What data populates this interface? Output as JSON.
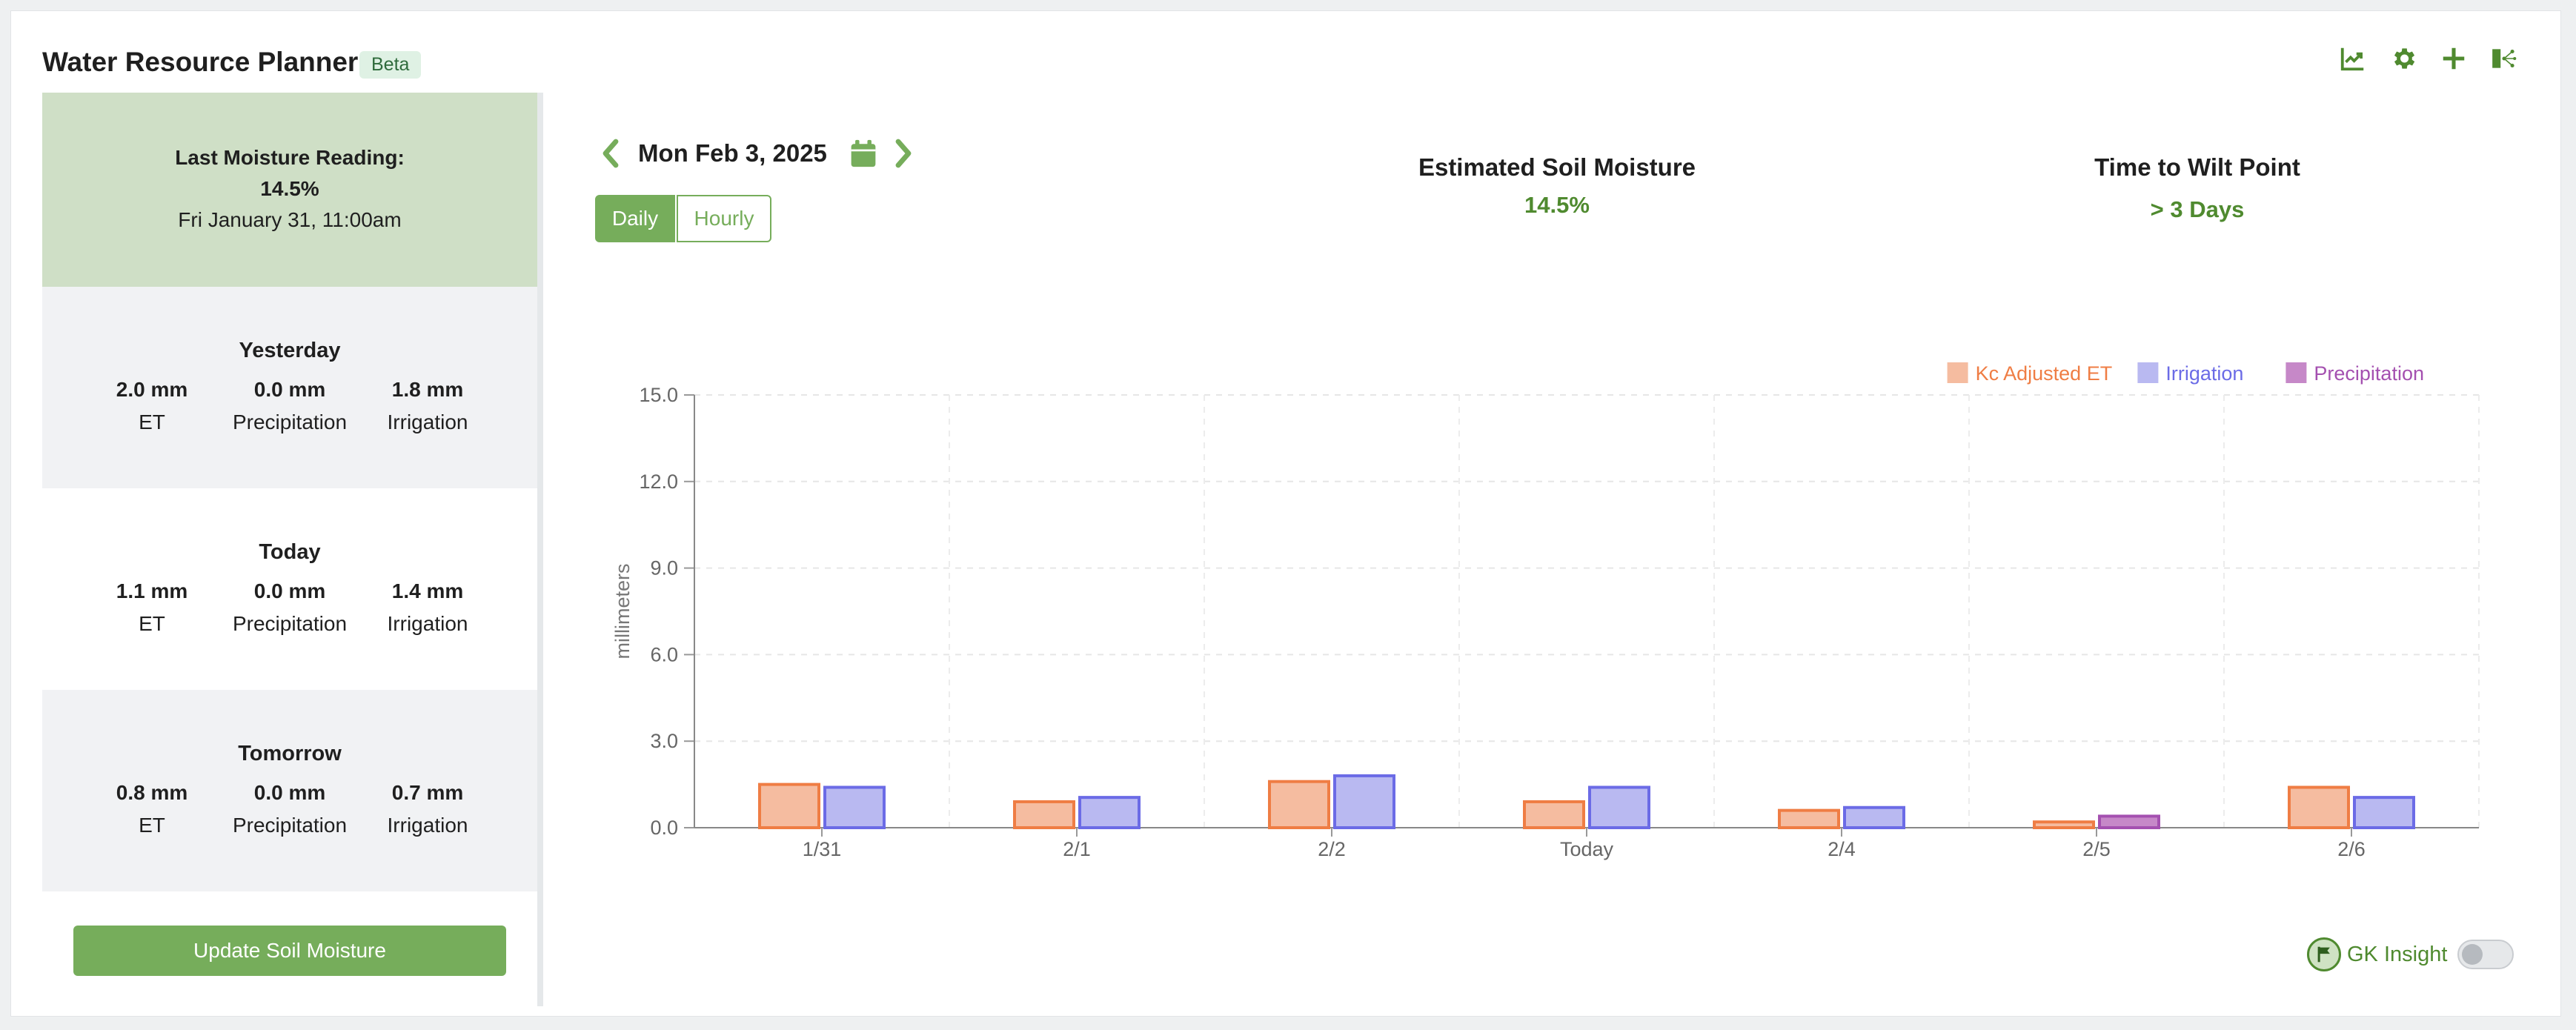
{
  "header": {
    "title": "Water Resource Planner",
    "badge": "Beta",
    "icons": [
      "chart-line-icon",
      "gear-icon",
      "plus-icon",
      "share-icon"
    ]
  },
  "sidebar": {
    "last_reading": {
      "label": "Last Moisture Reading:",
      "value": "14.5%",
      "date": "Fri January 31, 11:00am"
    },
    "days": [
      {
        "title": "Yesterday",
        "stats": [
          {
            "value": "2.0 mm",
            "label": "ET"
          },
          {
            "value": "0.0 mm",
            "label": "Precipitation"
          },
          {
            "value": "1.8 mm",
            "label": "Irrigation"
          }
        ]
      },
      {
        "title": "Today",
        "stats": [
          {
            "value": "1.1 mm",
            "label": "ET"
          },
          {
            "value": "0.0 mm",
            "label": "Precipitation"
          },
          {
            "value": "1.4 mm",
            "label": "Irrigation"
          }
        ]
      },
      {
        "title": "Tomorrow",
        "stats": [
          {
            "value": "0.8 mm",
            "label": "ET"
          },
          {
            "value": "0.0 mm",
            "label": "Precipitation"
          },
          {
            "value": "0.7 mm",
            "label": "Irrigation"
          }
        ]
      }
    ],
    "update_button": "Update Soil Moisture"
  },
  "date_nav": {
    "date": "Mon Feb 3, 2025",
    "modes": [
      "Daily",
      "Hourly"
    ],
    "selected_mode": "Daily"
  },
  "metrics": {
    "soil_moisture_label": "Estimated Soil Moisture",
    "soil_moisture_value": "14.5%",
    "wilt_label": "Time to Wilt Point",
    "wilt_value": "> 3 Days"
  },
  "chart_data": {
    "type": "bar",
    "categories": [
      "1/31",
      "2/1",
      "2/2",
      "Today",
      "2/4",
      "2/5",
      "2/6"
    ],
    "series": [
      {
        "name": "Kc Adjusted ET",
        "values": [
          1.5,
          0.9,
          1.6,
          0.9,
          0.6,
          0.2,
          1.4
        ],
        "fill": "#f5bca0",
        "stroke": "#ef7d44"
      },
      {
        "name": "Irrigation",
        "values": [
          1.4,
          1.05,
          1.8,
          1.4,
          0.7,
          0,
          1.05
        ],
        "fill": "#b9b9f1",
        "stroke": "#6b6be6"
      },
      {
        "name": "Precipitation",
        "values": [
          0,
          0,
          0,
          0,
          0,
          0.4,
          0
        ],
        "fill": "#c688c8",
        "stroke": "#a450b0"
      }
    ],
    "ylabel": "millimeters",
    "xlabel": "",
    "ylim": [
      0,
      15
    ],
    "yticks": [
      "0.0",
      "3.0",
      "6.0",
      "9.0",
      "12.0",
      "15.0"
    ],
    "grid": true,
    "legend_position": "top-right"
  },
  "gk_insight": {
    "label": "GK Insight",
    "enabled": false
  }
}
